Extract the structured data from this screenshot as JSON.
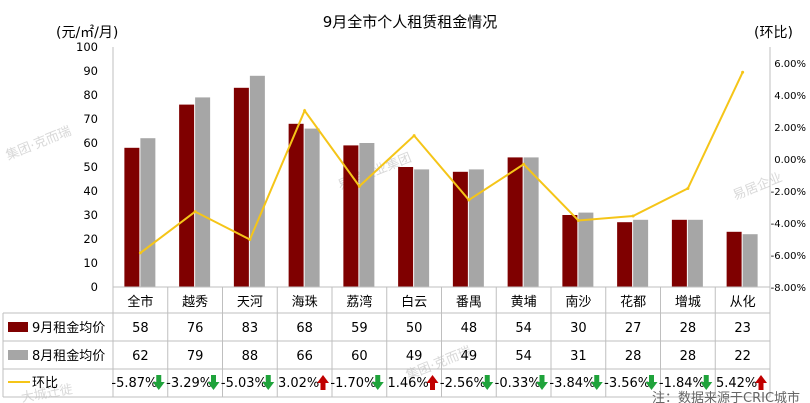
{
  "chart_data": {
    "type": "bar",
    "title": "9月全市个人租赁租金情况",
    "ylabel": "(元/㎡/月)",
    "y2label": "(环比)",
    "ylim": [
      0,
      100
    ],
    "y_ticks": [
      "0",
      "10",
      "20",
      "30",
      "40",
      "50",
      "60",
      "70",
      "80",
      "90",
      "100"
    ],
    "y2lim": [
      -8,
      7
    ],
    "y2_ticks": [
      "-8.00%",
      "-6.00%",
      "-4.00%",
      "-2.00%",
      "0.00%",
      "2.00%",
      "4.00%",
      "6.00%"
    ],
    "grid": false,
    "categories": [
      "全市",
      "越秀",
      "天河",
      "海珠",
      "荔湾",
      "白云",
      "番禺",
      "黄埔",
      "南沙",
      "花都",
      "增城",
      "从化"
    ],
    "series": [
      {
        "name": "9月租金均价",
        "type": "bar",
        "color": "#7f0000",
        "values": [
          58,
          76,
          83,
          68,
          59,
          50,
          48,
          54,
          30,
          27,
          28,
          23
        ]
      },
      {
        "name": "8月租金均价",
        "type": "bar",
        "color": "#a6a6a6",
        "values": [
          62,
          79,
          88,
          66,
          60,
          49,
          49,
          54,
          31,
          28,
          28,
          22
        ]
      },
      {
        "name": "环比",
        "type": "line",
        "axis": "secondary",
        "color": "#f5c518",
        "values": [
          -5.87,
          -3.29,
          -5.03,
          3.02,
          -1.7,
          1.46,
          -2.56,
          -0.33,
          -3.84,
          -3.56,
          -1.84,
          5.42
        ]
      }
    ],
    "table": {
      "row1": [
        "58",
        "76",
        "83",
        "68",
        "59",
        "50",
        "48",
        "54",
        "30",
        "27",
        "28",
        "23"
      ],
      "row2": [
        "62",
        "79",
        "88",
        "66",
        "60",
        "49",
        "49",
        "54",
        "31",
        "28",
        "28",
        "22"
      ],
      "row3": [
        "-5.87%",
        "-3.29%",
        "-5.03%",
        "3.02%",
        "-1.70%",
        "1.46%",
        "-2.56%",
        "-0.33%",
        "-3.84%",
        "-3.56%",
        "-1.84%",
        "5.42%"
      ],
      "arrows": [
        "down",
        "down",
        "down",
        "up",
        "down",
        "up",
        "down",
        "down",
        "down",
        "down",
        "down",
        "up"
      ]
    },
    "arrow_colors": {
      "up": "#c00000",
      "down": "#1fa33b"
    },
    "footnote": "注：数据来源于CRIC城市"
  },
  "watermarks": [
    "集团·克而瑞",
    "易居企业集团",
    "集团·克而瑞",
    "易居企业",
    "大城迁徙"
  ]
}
